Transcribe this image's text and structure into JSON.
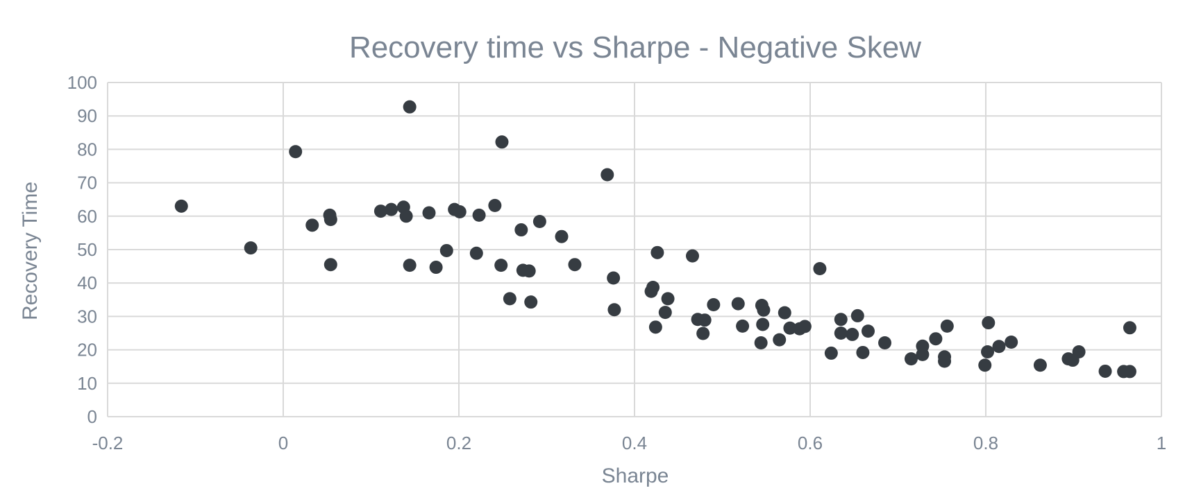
{
  "colors": {
    "background": "#ffffff",
    "grid": "#d9d9d9",
    "text": "#7a8593",
    "marker": "#363c42"
  },
  "chart_data": {
    "type": "scatter",
    "title": "Recovery time vs Sharpe - Negative Skew",
    "xlabel": "Sharpe",
    "ylabel": "Recovery Time",
    "xlim": [
      -0.2,
      1
    ],
    "ylim": [
      0,
      100
    ],
    "xticks": [
      -0.2,
      0,
      0.2,
      0.4,
      0.6,
      0.8,
      1
    ],
    "xtick_labels": [
      "-0.2",
      "0",
      "0.2",
      "0.4",
      "0.6",
      "0.8",
      "1"
    ],
    "yticks": [
      0,
      10,
      20,
      30,
      40,
      50,
      60,
      70,
      80,
      90,
      100
    ],
    "ytick_labels": [
      "0",
      "10",
      "20",
      "30",
      "40",
      "50",
      "60",
      "70",
      "80",
      "90",
      "100"
    ],
    "grid": true,
    "legend": "none",
    "series": [
      {
        "name": "Recovery Time",
        "points": [
          [
            -0.116,
            63.0
          ],
          [
            -0.037,
            50.5
          ],
          [
            0.014,
            79.3
          ],
          [
            0.033,
            57.3
          ],
          [
            0.053,
            60.3
          ],
          [
            0.054,
            59.0
          ],
          [
            0.054,
            45.5
          ],
          [
            0.111,
            61.5
          ],
          [
            0.123,
            62.0
          ],
          [
            0.137,
            62.7
          ],
          [
            0.14,
            60.0
          ],
          [
            0.144,
            92.7
          ],
          [
            0.144,
            45.3
          ],
          [
            0.166,
            61.0
          ],
          [
            0.174,
            44.7
          ],
          [
            0.186,
            49.7
          ],
          [
            0.195,
            62.0
          ],
          [
            0.201,
            61.3
          ],
          [
            0.22,
            48.9
          ],
          [
            0.223,
            60.3
          ],
          [
            0.241,
            63.2
          ],
          [
            0.248,
            45.3
          ],
          [
            0.249,
            82.2
          ],
          [
            0.258,
            35.3
          ],
          [
            0.271,
            55.9
          ],
          [
            0.273,
            43.8
          ],
          [
            0.28,
            43.6
          ],
          [
            0.282,
            34.3
          ],
          [
            0.292,
            58.4
          ],
          [
            0.317,
            53.9
          ],
          [
            0.332,
            45.5
          ],
          [
            0.369,
            72.4
          ],
          [
            0.376,
            41.5
          ],
          [
            0.377,
            32.0
          ],
          [
            0.419,
            37.5
          ],
          [
            0.421,
            38.7
          ],
          [
            0.424,
            26.8
          ],
          [
            0.426,
            49.1
          ],
          [
            0.435,
            31.2
          ],
          [
            0.438,
            35.3
          ],
          [
            0.466,
            48.1
          ],
          [
            0.472,
            29.1
          ],
          [
            0.478,
            24.9
          ],
          [
            0.48,
            28.9
          ],
          [
            0.49,
            33.5
          ],
          [
            0.518,
            33.8
          ],
          [
            0.523,
            27.1
          ],
          [
            0.544,
            22.1
          ],
          [
            0.545,
            33.3
          ],
          [
            0.546,
            27.6
          ],
          [
            0.547,
            31.9
          ],
          [
            0.565,
            23.0
          ],
          [
            0.571,
            31.1
          ],
          [
            0.577,
            26.5
          ],
          [
            0.588,
            26.3
          ],
          [
            0.594,
            27.0
          ],
          [
            0.611,
            44.3
          ],
          [
            0.624,
            19.0
          ],
          [
            0.635,
            29.1
          ],
          [
            0.635,
            25.0
          ],
          [
            0.648,
            24.6
          ],
          [
            0.654,
            30.2
          ],
          [
            0.66,
            19.2
          ],
          [
            0.666,
            25.6
          ],
          [
            0.685,
            22.1
          ],
          [
            0.715,
            17.3
          ],
          [
            0.728,
            21.1
          ],
          [
            0.728,
            18.6
          ],
          [
            0.743,
            23.3
          ],
          [
            0.753,
            17.9
          ],
          [
            0.753,
            16.6
          ],
          [
            0.756,
            27.1
          ],
          [
            0.799,
            15.4
          ],
          [
            0.802,
            19.4
          ],
          [
            0.803,
            28.1
          ],
          [
            0.815,
            21.0
          ],
          [
            0.829,
            22.3
          ],
          [
            0.862,
            15.4
          ],
          [
            0.894,
            17.3
          ],
          [
            0.899,
            16.9
          ],
          [
            0.906,
            19.4
          ],
          [
            0.936,
            13.6
          ],
          [
            0.957,
            13.5
          ],
          [
            0.964,
            13.5
          ],
          [
            0.964,
            26.6
          ]
        ]
      }
    ]
  }
}
